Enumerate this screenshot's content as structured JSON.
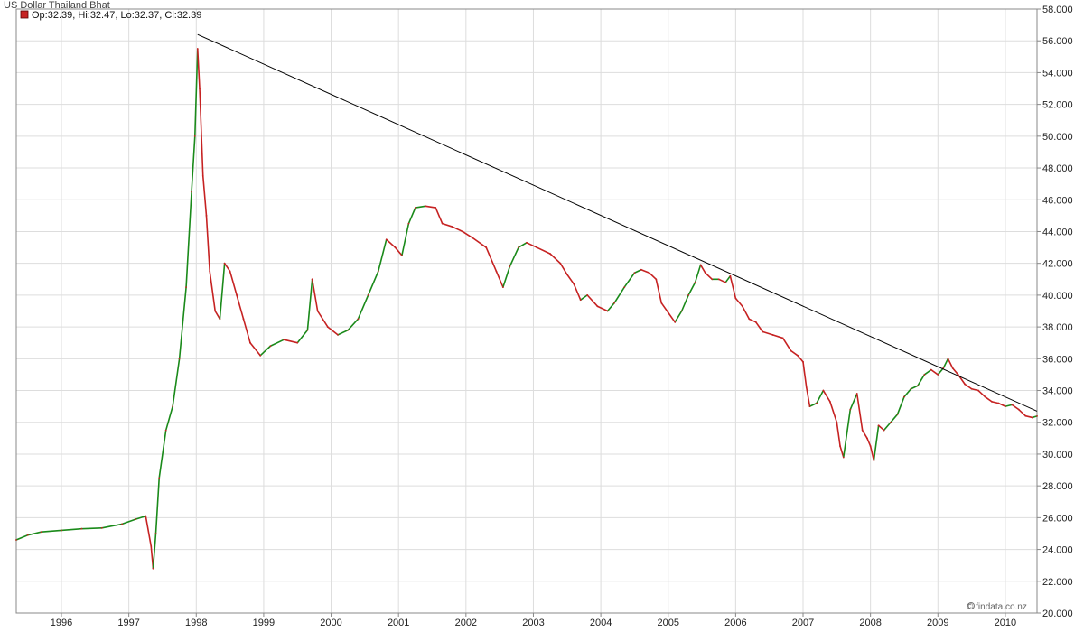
{
  "chart_data": {
    "type": "line",
    "title": "US Dollar Thailand Bhat",
    "ohlc_label": "Op:32.39, Hi:32.47, Lo:32.37, Cl:32.39",
    "credit": "© findata.co.nz",
    "colors": {
      "up": "#1a8a1a",
      "down": "#c62222",
      "trendline": "#000000",
      "grid": "#dddddd",
      "axis": "#888888"
    },
    "x_range": [
      1995.33,
      2010.47
    ],
    "y_range": [
      20,
      58
    ],
    "y_ticks": [
      {
        "value": 20,
        "label": "20.000"
      },
      {
        "value": 22,
        "label": "22.000"
      },
      {
        "value": 24,
        "label": "24.000"
      },
      {
        "value": 26,
        "label": "26.000"
      },
      {
        "value": 28,
        "label": "28.000"
      },
      {
        "value": 30,
        "label": "30.000"
      },
      {
        "value": 32,
        "label": "32.000"
      },
      {
        "value": 34,
        "label": "34.000"
      },
      {
        "value": 36,
        "label": "36.000"
      },
      {
        "value": 38,
        "label": "38.000"
      },
      {
        "value": 40,
        "label": "40.000"
      },
      {
        "value": 42,
        "label": "42.000"
      },
      {
        "value": 44,
        "label": "44.000"
      },
      {
        "value": 46,
        "label": "46.000"
      },
      {
        "value": 48,
        "label": "48.000"
      },
      {
        "value": 50,
        "label": "50.000"
      },
      {
        "value": 52,
        "label": "52.000"
      },
      {
        "value": 54,
        "label": "54.000"
      },
      {
        "value": 56,
        "label": "56.000"
      },
      {
        "value": 58,
        "label": "58.000"
      }
    ],
    "x_ticks": [
      {
        "value": 1996,
        "label": "1996"
      },
      {
        "value": 1997,
        "label": "1997"
      },
      {
        "value": 1998,
        "label": "1998"
      },
      {
        "value": 1999,
        "label": "1999"
      },
      {
        "value": 2000,
        "label": "2000"
      },
      {
        "value": 2001,
        "label": "2001"
      },
      {
        "value": 2002,
        "label": "2002"
      },
      {
        "value": 2003,
        "label": "2003"
      },
      {
        "value": 2004,
        "label": "2004"
      },
      {
        "value": 2005,
        "label": "2005"
      },
      {
        "value": 2006,
        "label": "2006"
      },
      {
        "value": 2007,
        "label": "2007"
      },
      {
        "value": 2008,
        "label": "2008"
      },
      {
        "value": 2009,
        "label": "2009"
      },
      {
        "value": 2010,
        "label": "2010"
      }
    ],
    "series": [
      {
        "points": [
          [
            1995.33,
            24.6
          ],
          [
            1995.5,
            24.9
          ],
          [
            1995.7,
            25.1
          ],
          [
            1996.0,
            25.2
          ],
          [
            1996.3,
            25.3
          ],
          [
            1996.6,
            25.35
          ],
          [
            1996.9,
            25.6
          ],
          [
            1997.1,
            25.9
          ],
          [
            1997.25,
            26.1
          ],
          [
            1997.33,
            24.2
          ],
          [
            1997.36,
            22.8
          ],
          [
            1997.4,
            25.0
          ],
          [
            1997.45,
            28.5
          ],
          [
            1997.55,
            31.5
          ],
          [
            1997.65,
            33.0
          ],
          [
            1997.75,
            36.0
          ],
          [
            1997.85,
            40.5
          ],
          [
            1997.93,
            46.5
          ],
          [
            1997.98,
            50.0
          ],
          [
            1998.02,
            55.5
          ],
          [
            1998.05,
            53.0
          ],
          [
            1998.1,
            47.5
          ],
          [
            1998.15,
            45.0
          ],
          [
            1998.2,
            41.5
          ],
          [
            1998.28,
            39.0
          ],
          [
            1998.35,
            38.5
          ],
          [
            1998.42,
            42.0
          ],
          [
            1998.5,
            41.5
          ],
          [
            1998.6,
            40.0
          ],
          [
            1998.7,
            38.5
          ],
          [
            1998.8,
            37.0
          ],
          [
            1998.95,
            36.2
          ],
          [
            1999.1,
            36.8
          ],
          [
            1999.3,
            37.2
          ],
          [
            1999.5,
            37.0
          ],
          [
            1999.65,
            37.8
          ],
          [
            1999.72,
            41.0
          ],
          [
            1999.8,
            39.0
          ],
          [
            1999.95,
            38.0
          ],
          [
            2000.1,
            37.5
          ],
          [
            2000.25,
            37.8
          ],
          [
            2000.4,
            38.5
          ],
          [
            2000.55,
            40.0
          ],
          [
            2000.7,
            41.5
          ],
          [
            2000.82,
            43.5
          ],
          [
            2000.95,
            43.0
          ],
          [
            2001.05,
            42.5
          ],
          [
            2001.15,
            44.5
          ],
          [
            2001.25,
            45.5
          ],
          [
            2001.4,
            45.6
          ],
          [
            2001.55,
            45.5
          ],
          [
            2001.65,
            44.5
          ],
          [
            2001.8,
            44.3
          ],
          [
            2001.95,
            44.0
          ],
          [
            2002.1,
            43.6
          ],
          [
            2002.3,
            43.0
          ],
          [
            2002.45,
            41.5
          ],
          [
            2002.55,
            40.5
          ],
          [
            2002.65,
            41.8
          ],
          [
            2002.78,
            43.0
          ],
          [
            2002.9,
            43.3
          ],
          [
            2003.05,
            43.0
          ],
          [
            2003.25,
            42.6
          ],
          [
            2003.4,
            42.0
          ],
          [
            2003.5,
            41.3
          ],
          [
            2003.6,
            40.7
          ],
          [
            2003.7,
            39.7
          ],
          [
            2003.8,
            40.0
          ],
          [
            2003.95,
            39.3
          ],
          [
            2004.1,
            39.0
          ],
          [
            2004.2,
            39.5
          ],
          [
            2004.35,
            40.5
          ],
          [
            2004.5,
            41.4
          ],
          [
            2004.6,
            41.6
          ],
          [
            2004.72,
            41.4
          ],
          [
            2004.82,
            41.0
          ],
          [
            2004.9,
            39.5
          ],
          [
            2005.0,
            38.9
          ],
          [
            2005.1,
            38.3
          ],
          [
            2005.2,
            39.0
          ],
          [
            2005.3,
            40.0
          ],
          [
            2005.4,
            40.8
          ],
          [
            2005.48,
            41.9
          ],
          [
            2005.55,
            41.4
          ],
          [
            2005.65,
            41.0
          ],
          [
            2005.75,
            41.0
          ],
          [
            2005.85,
            40.8
          ],
          [
            2005.92,
            41.2
          ],
          [
            2006.0,
            39.8
          ],
          [
            2006.1,
            39.3
          ],
          [
            2006.2,
            38.5
          ],
          [
            2006.3,
            38.3
          ],
          [
            2006.4,
            37.7
          ],
          [
            2006.55,
            37.5
          ],
          [
            2006.7,
            37.3
          ],
          [
            2006.82,
            36.5
          ],
          [
            2006.92,
            36.2
          ],
          [
            2007.0,
            35.8
          ],
          [
            2007.05,
            34.2
          ],
          [
            2007.1,
            33.0
          ],
          [
            2007.2,
            33.2
          ],
          [
            2007.3,
            34.0
          ],
          [
            2007.4,
            33.3
          ],
          [
            2007.5,
            32.0
          ],
          [
            2007.55,
            30.5
          ],
          [
            2007.6,
            29.8
          ],
          [
            2007.7,
            32.8
          ],
          [
            2007.8,
            33.8
          ],
          [
            2007.88,
            31.5
          ],
          [
            2007.95,
            31.0
          ],
          [
            2008.0,
            30.5
          ],
          [
            2008.05,
            29.6
          ],
          [
            2008.12,
            31.8
          ],
          [
            2008.2,
            31.5
          ],
          [
            2008.3,
            32.0
          ],
          [
            2008.4,
            32.5
          ],
          [
            2008.5,
            33.6
          ],
          [
            2008.6,
            34.1
          ],
          [
            2008.7,
            34.3
          ],
          [
            2008.8,
            35.0
          ],
          [
            2008.9,
            35.3
          ],
          [
            2009.0,
            35.0
          ],
          [
            2009.08,
            35.4
          ],
          [
            2009.15,
            36.0
          ],
          [
            2009.22,
            35.4
          ],
          [
            2009.3,
            35.0
          ],
          [
            2009.4,
            34.4
          ],
          [
            2009.5,
            34.1
          ],
          [
            2009.6,
            34.0
          ],
          [
            2009.7,
            33.6
          ],
          [
            2009.8,
            33.3
          ],
          [
            2009.9,
            33.2
          ],
          [
            2010.0,
            33.0
          ],
          [
            2010.1,
            33.1
          ],
          [
            2010.2,
            32.8
          ],
          [
            2010.3,
            32.4
          ],
          [
            2010.4,
            32.3
          ],
          [
            2010.47,
            32.39
          ]
        ]
      }
    ],
    "trendline": {
      "from": [
        1998.02,
        56.4
      ],
      "to": [
        2010.47,
        32.7
      ]
    },
    "grid": true,
    "legend": "top-left"
  }
}
